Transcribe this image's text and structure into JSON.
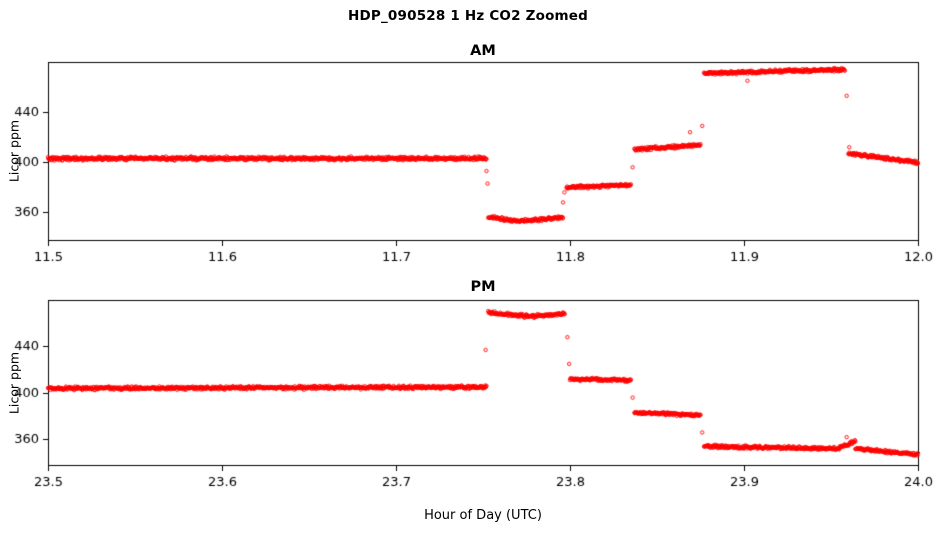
{
  "page": {
    "title": "HDP_090528  1 Hz CO2 Zoomed",
    "xlabel": "Hour of Day (UTC)"
  },
  "chart_data": [
    {
      "type": "scatter",
      "title": "AM",
      "ylabel": "Licor ppm",
      "xlim": [
        11.5,
        12.0
      ],
      "ylim": [
        338,
        480
      ],
      "xticks": [
        11.5,
        11.6,
        11.7,
        11.8,
        11.9,
        12.0
      ],
      "yticks": [
        360,
        400,
        440
      ],
      "grid": false,
      "legend": "none",
      "sample_rate_hz": 1,
      "marker": {
        "shape": "open-circle",
        "color": "#ff0000",
        "radius": 1.7
      },
      "segments": [
        {
          "x0": 11.5,
          "x1": 11.752,
          "y0": 403,
          "y1": 403,
          "noise": 1.3
        },
        {
          "x0": 11.753,
          "x1": 11.772,
          "y0": 356,
          "y1": 353,
          "noise": 1.2
        },
        {
          "x0": 11.772,
          "x1": 11.796,
          "y0": 353,
          "y1": 356,
          "noise": 1.2
        },
        {
          "x0": 11.798,
          "x1": 11.835,
          "y0": 380,
          "y1": 382,
          "noise": 1.2
        },
        {
          "x0": 11.837,
          "x1": 11.875,
          "y0": 410,
          "y1": 414,
          "noise": 1.2
        },
        {
          "x0": 11.877,
          "x1": 11.958,
          "y0": 471,
          "y1": 474,
          "noise": 1.3
        },
        {
          "x0": 11.96,
          "x1": 12.0,
          "y0": 407,
          "y1": 400,
          "noise": 1.2
        }
      ],
      "outliers": [
        [
          11.752,
          393
        ],
        [
          11.7526,
          383
        ],
        [
          11.796,
          368
        ],
        [
          11.7968,
          376
        ],
        [
          11.836,
          396
        ],
        [
          11.869,
          424
        ],
        [
          11.876,
          429
        ],
        [
          11.902,
          465
        ],
        [
          11.959,
          453
        ],
        [
          11.9605,
          412
        ]
      ]
    },
    {
      "type": "scatter",
      "title": "PM",
      "ylabel": "Licor ppm",
      "xlim": [
        23.5,
        24.0
      ],
      "ylim": [
        338,
        480
      ],
      "xticks": [
        23.5,
        23.6,
        23.7,
        23.8,
        23.9,
        24.0
      ],
      "yticks": [
        360,
        400,
        440
      ],
      "grid": false,
      "legend": "none",
      "sample_rate_hz": 1,
      "marker": {
        "shape": "open-circle",
        "color": "#ff0000",
        "radius": 1.7
      },
      "segments": [
        {
          "x0": 23.5,
          "x1": 23.752,
          "y0": 404,
          "y1": 405,
          "noise": 1.3
        },
        {
          "x0": 23.753,
          "x1": 23.776,
          "y0": 469,
          "y1": 466,
          "noise": 1.3
        },
        {
          "x0": 23.776,
          "x1": 23.797,
          "y0": 466,
          "y1": 468,
          "noise": 1.3
        },
        {
          "x0": 23.8,
          "x1": 23.835,
          "y0": 412,
          "y1": 411,
          "noise": 1.2
        },
        {
          "x0": 23.837,
          "x1": 23.875,
          "y0": 383,
          "y1": 381,
          "noise": 1.2
        },
        {
          "x0": 23.877,
          "x1": 23.955,
          "y0": 354,
          "y1": 352,
          "noise": 1.2
        },
        {
          "x0": 23.955,
          "x1": 23.964,
          "y0": 353,
          "y1": 358,
          "noise": 1.5
        },
        {
          "x0": 23.964,
          "x1": 24.0,
          "y0": 352,
          "y1": 347,
          "noise": 1.2
        }
      ],
      "outliers": [
        [
          23.7515,
          437
        ],
        [
          23.7985,
          448
        ],
        [
          23.7995,
          425
        ],
        [
          23.836,
          396
        ],
        [
          23.876,
          366
        ],
        [
          23.959,
          362
        ]
      ]
    }
  ]
}
